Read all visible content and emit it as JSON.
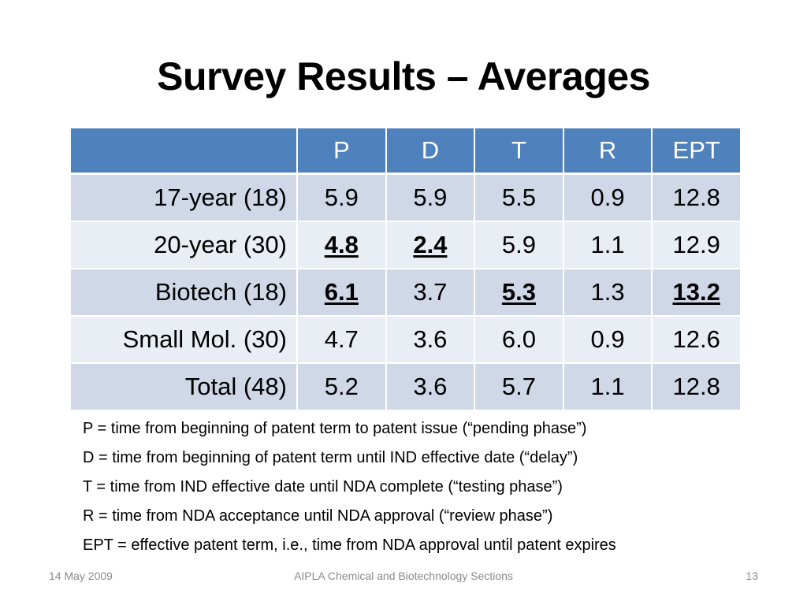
{
  "slide": {
    "title": "Survey Results – Averages"
  },
  "table": {
    "headers": [
      "",
      "P",
      "D",
      "T",
      "R",
      "EPT"
    ],
    "rows": [
      {
        "label": "17-year (18)",
        "values": [
          "5.9",
          "5.9",
          "5.5",
          "0.9",
          "12.8"
        ],
        "emphasized": [
          false,
          false,
          false,
          false,
          false
        ]
      },
      {
        "label": "20-year (30)",
        "values": [
          "4.8",
          "2.4",
          "5.9",
          "1.1",
          "12.9"
        ],
        "emphasized": [
          true,
          true,
          false,
          false,
          false
        ]
      },
      {
        "label": "Biotech (18)",
        "values": [
          "6.1",
          "3.7",
          "5.3",
          "1.3",
          "13.2"
        ],
        "emphasized": [
          true,
          false,
          true,
          false,
          true
        ]
      },
      {
        "label": "Small Mol. (30)",
        "values": [
          "4.7",
          "3.6",
          "6.0",
          "0.9",
          "12.6"
        ],
        "emphasized": [
          false,
          false,
          false,
          false,
          false
        ]
      },
      {
        "label": "Total (48)",
        "values": [
          "5.2",
          "3.6",
          "5.7",
          "1.1",
          "12.8"
        ],
        "emphasized": [
          false,
          false,
          false,
          false,
          false
        ]
      }
    ]
  },
  "definitions": [
    "P = time from beginning of patent term to patent issue (“pending phase”)",
    "D = time from beginning of patent term until IND effective date (“delay”)",
    "T = time from IND effective date until NDA complete (“testing phase”)",
    "R = time from NDA acceptance until NDA approval (“review phase”)",
    "EPT = effective patent term, i.e., time from NDA approval until patent expires"
  ],
  "footer": {
    "date": "14 May 2009",
    "center": "AIPLA Chemical and Biotechnology Sections",
    "page": "13"
  },
  "colors": {
    "header_bg": "#4f81bd",
    "row_odd": "#d0d8e8",
    "row_even": "#e9edf4"
  }
}
